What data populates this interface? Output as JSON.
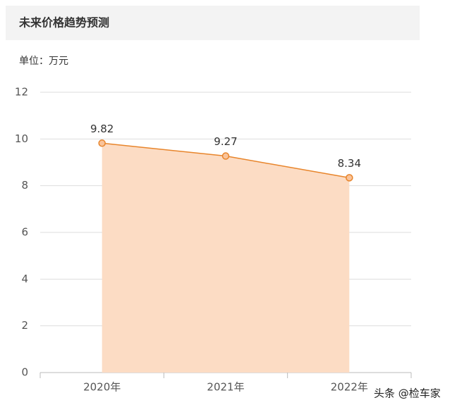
{
  "chart_data": {
    "type": "area",
    "title": "未来价格趋势预测",
    "unit_label": "单位：万元",
    "categories": [
      "2020年",
      "2021年",
      "2022年"
    ],
    "values": [
      9.82,
      9.27,
      8.34
    ],
    "color": "#e8852b",
    "fill_color": "#fcdcc4",
    "marker_color": "#f9c39a",
    "ylim": [
      0,
      12
    ],
    "yticks": [
      0,
      2,
      4,
      6,
      8,
      10,
      12
    ],
    "grid": true,
    "watermark": "头条 @检车家"
  }
}
